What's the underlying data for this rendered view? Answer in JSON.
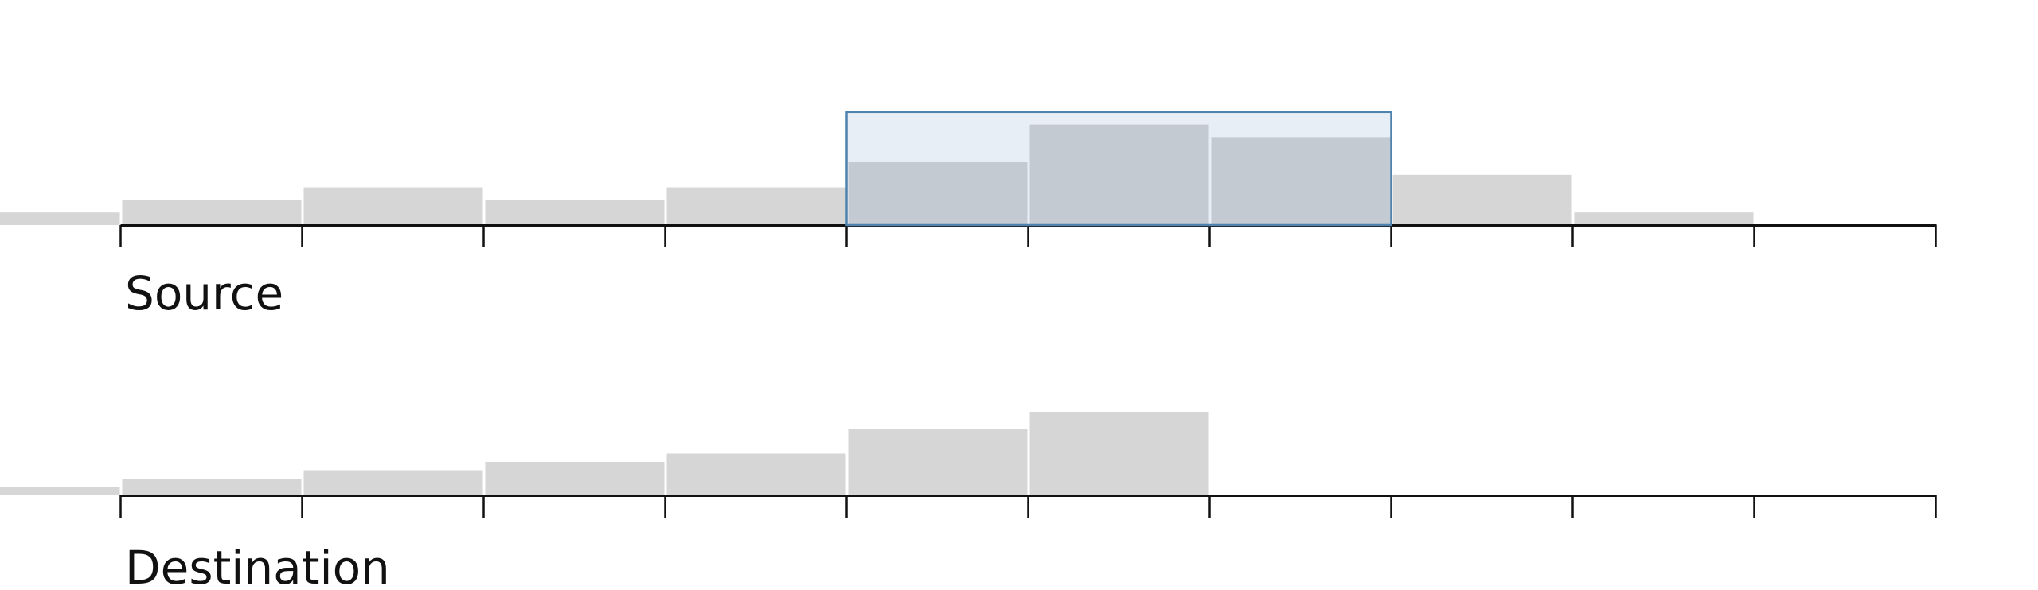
{
  "charts": {
    "source": {
      "label": "Source"
    },
    "destination": {
      "label": "Destination"
    }
  },
  "colors": {
    "bar": "#d6d6d6",
    "bar_selected": "#c4cad1",
    "selection_fill": "#e8eef5",
    "selection_stroke": "#4f82ad",
    "axis": "#111111"
  },
  "chart_data": [
    {
      "type": "bar",
      "title": "Source",
      "x_bin_edges": [
        -1,
        0,
        1,
        2,
        3,
        4,
        5,
        6,
        7,
        8,
        9,
        10
      ],
      "values": [
        1,
        2,
        3,
        2,
        3,
        5,
        8,
        7,
        4,
        1,
        0
      ],
      "selection": {
        "x_range": [
          4,
          7
        ],
        "y_top": 9
      },
      "ylim": [
        0,
        9
      ],
      "grid": false
    },
    {
      "type": "bar",
      "title": "Destination",
      "x_bin_edges": [
        -1,
        0,
        1,
        2,
        3,
        4,
        5,
        6,
        7,
        8,
        9,
        10
      ],
      "values": [
        1,
        2,
        3,
        4,
        5,
        8,
        10,
        0,
        0,
        0,
        0
      ],
      "ylim": [
        0,
        10
      ],
      "grid": false
    }
  ]
}
